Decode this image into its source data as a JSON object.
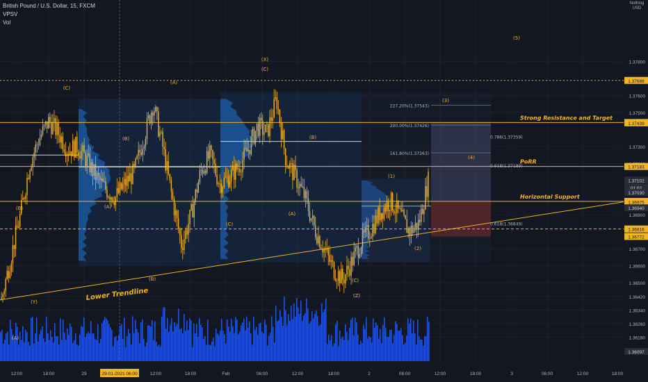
{
  "header": {
    "symbol": "British Pound / U.S. Dollar, 15, FXCM",
    "indicator_vpsv": "VPSV",
    "indicator_vol": "Vol"
  },
  "price_axis": {
    "currency_top": "Nothing",
    "currency_bottom": "USD"
  },
  "colors": {
    "background": "#131722",
    "grid": "#1c2230",
    "candle": "#f0b429",
    "volume": "#2962ff",
    "level": "#f0b429",
    "label_badge": "#f0b429",
    "text": "#b2b5be",
    "profile": "#1e5ea8",
    "fib_box": "#4a4a6a",
    "stop_zone": "#7a2a2a"
  },
  "chart_data": {
    "type": "candlestick",
    "symbol": "GBPUSD",
    "timeframe": "15",
    "ylim": [
      1.3604,
      1.3816
    ],
    "y_ticks": [
      1.378,
      1.376,
      1.375,
      1.373,
      1.372,
      1.369,
      1.367,
      1.366,
      1.365,
      1.3642,
      1.3634,
      1.3626,
      1.3618
    ],
    "y_tick_labels": [
      "1.37800",
      "1.37600",
      "1.37500",
      "1.37300",
      "1.37200",
      "1.36900",
      "1.36700",
      "1.36600",
      "1.36500",
      "1.36420",
      "1.36340",
      "1.36260",
      "1.36180"
    ],
    "x_tick_labels": [
      "12:00",
      "18:00",
      "29",
      "29-01-2021 06:00",
      "12:00",
      "18:00",
      "Feb",
      "06:00",
      "12:00",
      "18:00",
      "2",
      "06:00",
      "12:00",
      "18:00",
      "3",
      "06:00",
      "12:00",
      "18:00"
    ],
    "highlighted_x_label": "29-01-2021 06:00",
    "price_badges": [
      {
        "label": "1.37688",
        "value": 1.37688
      },
      {
        "label": "1.37441",
        "value": 1.37441
      },
      {
        "label": "1.37439",
        "value": 1.37439
      },
      {
        "label": "1.37183",
        "value": 1.37183
      },
      {
        "label": "1.37102",
        "value": 1.37102
      },
      {
        "label": "01:02",
        "value": 1.3706
      },
      {
        "label": "1.37030",
        "value": 1.3703
      },
      {
        "label": "1.36978",
        "value": 1.36978
      },
      {
        "label": "1.36975",
        "value": 1.36975
      },
      {
        "label": "1.36940",
        "value": 1.3694
      },
      {
        "label": "1.36816",
        "value": 1.36816
      },
      {
        "label": "1.36772",
        "value": 1.36772
      },
      {
        "label": "1.36097",
        "value": 1.36097
      }
    ],
    "horizontal_levels": [
      {
        "name": "Strong Resistance and Target",
        "value": 1.37441,
        "style": "solid"
      },
      {
        "name": "PoRR",
        "value": 1.37183,
        "style": "solid"
      },
      {
        "name": "Horizontal Support",
        "value": 1.36978,
        "style": "solid"
      },
      {
        "name": "",
        "value": 1.37688,
        "style": "dotted"
      },
      {
        "name": "",
        "value": 1.36816,
        "style": "dashed"
      }
    ],
    "fib_levels": [
      {
        "label": "227.20%(1.37543)",
        "value": 1.37543
      },
      {
        "label": "200.00%(1.37426)",
        "value": 1.37426
      },
      {
        "label": "161.80%(1.37263)",
        "value": 1.37263
      },
      {
        "label": "0.786(1.37359)",
        "value": 1.37359
      },
      {
        "label": "0.618(1.37189)",
        "value": 1.37189
      },
      {
        "label": "0.618(1.36849)",
        "value": 1.36849
      }
    ],
    "annotations": {
      "trendline": "Lower Trendline",
      "wave_labels": [
        "(C)",
        "(A)",
        "(X)",
        "(C)",
        "(B)",
        "(A)",
        "(B)",
        "(C)",
        "(A)",
        "(B)",
        "(A)",
        "(1)",
        "(3)",
        "(4)",
        "(5)",
        "(2)",
        "(C)",
        "(Z)",
        "(Y)",
        "(B)"
      ]
    },
    "price_path": [
      1.364,
      1.3665,
      1.369,
      1.372,
      1.3735,
      1.3745,
      1.3738,
      1.3728,
      1.373,
      1.3722,
      1.3712,
      1.3705,
      1.37,
      1.3708,
      1.3715,
      1.3735,
      1.3755,
      1.373,
      1.37,
      1.3672,
      1.369,
      1.3715,
      1.3725,
      1.3708,
      1.3712,
      1.3718,
      1.3728,
      1.3742,
      1.3738,
      1.3758,
      1.3722,
      1.3712,
      1.37,
      1.3682,
      1.367,
      1.3658,
      1.3652,
      1.3663,
      1.3675,
      1.3682,
      1.3692,
      1.3698,
      1.369,
      1.368,
      1.3685,
      1.371
    ]
  }
}
